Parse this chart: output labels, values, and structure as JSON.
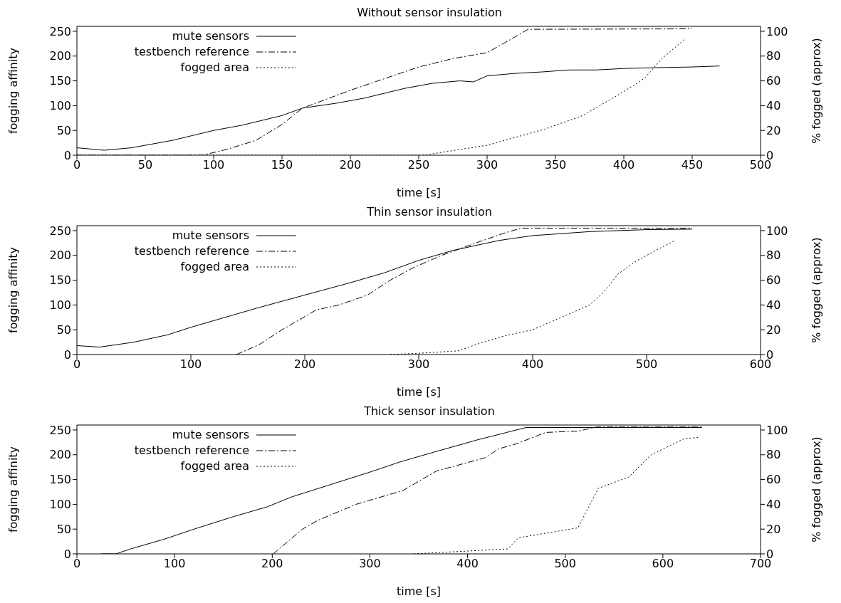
{
  "chart_data": [
    {
      "type": "line",
      "title": "Without sensor insulation",
      "xlabel": "time [s]",
      "ylabel": "fogging affinity",
      "y2label": "% fogged (approx)",
      "xlim": [
        0,
        500
      ],
      "xticks": [
        0,
        50,
        100,
        150,
        200,
        250,
        300,
        350,
        400,
        450,
        500
      ],
      "ylim": [
        0,
        260
      ],
      "yticks": [
        0,
        50,
        100,
        150,
        200,
        250
      ],
      "y2lim": [
        0,
        104
      ],
      "y2ticks": [
        0,
        20,
        40,
        60,
        80,
        100
      ],
      "legend": "top left",
      "marker": "none",
      "series": [
        {
          "name": "mute sensors",
          "color": "#000000",
          "line_style": "solid",
          "x": [
            0,
            20,
            40,
            50,
            70,
            85,
            100,
            120,
            135,
            150,
            165,
            190,
            210,
            225,
            240,
            260,
            280,
            290,
            300,
            320,
            340,
            360,
            380,
            400,
            430,
            450,
            470
          ],
          "values": [
            15,
            10,
            15,
            20,
            30,
            40,
            50,
            60,
            70,
            80,
            95,
            105,
            115,
            125,
            135,
            145,
            150,
            148,
            160,
            165,
            168,
            172,
            172,
            175,
            177,
            178,
            180
          ]
        },
        {
          "name": "testbench reference",
          "color": "#000000",
          "line_style": "dashed",
          "x": [
            0,
            92,
            110,
            131,
            150,
            165,
            200,
            250,
            275,
            300,
            315,
            330,
            450
          ],
          "values": [
            0,
            0,
            12,
            30,
            62,
            95,
            131,
            178,
            195,
            207,
            230,
            254,
            255
          ]
        },
        {
          "name": "fogged area",
          "color": "#000000",
          "line_style": "dotted",
          "axis": "y2",
          "x": [
            0,
            255,
            265,
            300,
            342,
            370,
            401,
            415,
            428,
            445
          ],
          "values": [
            0,
            0,
            2,
            8,
            21,
            32,
            52,
            62,
            78,
            94
          ]
        }
      ]
    },
    {
      "type": "line",
      "title": "Thin sensor insulation",
      "xlabel": "time [s]",
      "ylabel": "fogging affinity",
      "y2label": "% fogged (approx)",
      "xlim": [
        0,
        600
      ],
      "xticks": [
        0,
        100,
        200,
        300,
        400,
        500,
        600
      ],
      "ylim": [
        0,
        260
      ],
      "yticks": [
        0,
        50,
        100,
        150,
        200,
        250
      ],
      "y2lim": [
        0,
        104
      ],
      "y2ticks": [
        0,
        20,
        40,
        60,
        80,
        100
      ],
      "legend": "top left",
      "marker": "none",
      "series": [
        {
          "name": "mute sensors",
          "color": "#000000",
          "line_style": "solid",
          "x": [
            0,
            20,
            50,
            80,
            100,
            130,
            160,
            200,
            240,
            270,
            300,
            330,
            370,
            400,
            450,
            500,
            540
          ],
          "values": [
            18,
            15,
            25,
            40,
            55,
            75,
            95,
            120,
            145,
            165,
            190,
            210,
            230,
            240,
            248,
            252,
            253
          ]
        },
        {
          "name": "testbench reference",
          "color": "#000000",
          "line_style": "dashed",
          "x": [
            140,
            160,
            180,
            210,
            230,
            255,
            275,
            295,
            320,
            350,
            375,
            390,
            540
          ],
          "values": [
            0,
            20,
            50,
            90,
            100,
            120,
            150,
            175,
            200,
            225,
            245,
            255,
            255
          ]
        },
        {
          "name": "fogged area",
          "color": "#000000",
          "line_style": "dotted",
          "axis": "y2",
          "x": [
            275,
            300,
            335,
            350,
            375,
            400,
            425,
            450,
            462,
            475,
            490,
            510,
            525
          ],
          "values": [
            0,
            1,
            3,
            8,
            15,
            20,
            30,
            40,
            50,
            65,
            75,
            85,
            92
          ]
        }
      ]
    },
    {
      "type": "line",
      "title": "Thick sensor insulation",
      "xlabel": "time [s]",
      "ylabel": "fogging affinity",
      "y2label": "% fogged (approx)",
      "xlim": [
        0,
        700
      ],
      "xticks": [
        0,
        100,
        200,
        300,
        400,
        500,
        600,
        700
      ],
      "ylim": [
        0,
        260
      ],
      "yticks": [
        0,
        50,
        100,
        150,
        200,
        250
      ],
      "y2lim": [
        0,
        104
      ],
      "y2ticks": [
        0,
        20,
        40,
        60,
        80,
        100
      ],
      "legend": "top left",
      "marker": "none",
      "series": [
        {
          "name": "mute sensors",
          "color": "#000000",
          "line_style": "solid",
          "x": [
            25,
            40,
            55,
            90,
            120,
            160,
            195,
            220,
            260,
            300,
            330,
            365,
            410,
            440,
            460,
            640
          ],
          "values": [
            0,
            0,
            10,
            30,
            50,
            75,
            95,
            115,
            140,
            165,
            185,
            205,
            230,
            245,
            255,
            255
          ]
        },
        {
          "name": "testbench reference",
          "color": "#000000",
          "line_style": "dashed",
          "x": [
            201,
            231,
            247,
            286,
            334,
            368,
            418,
            432,
            450,
            480,
            514,
            532,
            640
          ],
          "values": [
            0,
            50,
            68,
            100,
            128,
            167,
            194,
            212,
            222,
            245,
            248,
            256,
            256
          ]
        },
        {
          "name": "fogged area",
          "color": "#000000",
          "line_style": "dotted",
          "axis": "y2",
          "x": [
            345,
            441,
            452,
            513,
            534,
            565,
            588,
            622,
            637
          ],
          "values": [
            0,
            4,
            13,
            21,
            53,
            62,
            80,
            93,
            94
          ]
        }
      ]
    }
  ]
}
